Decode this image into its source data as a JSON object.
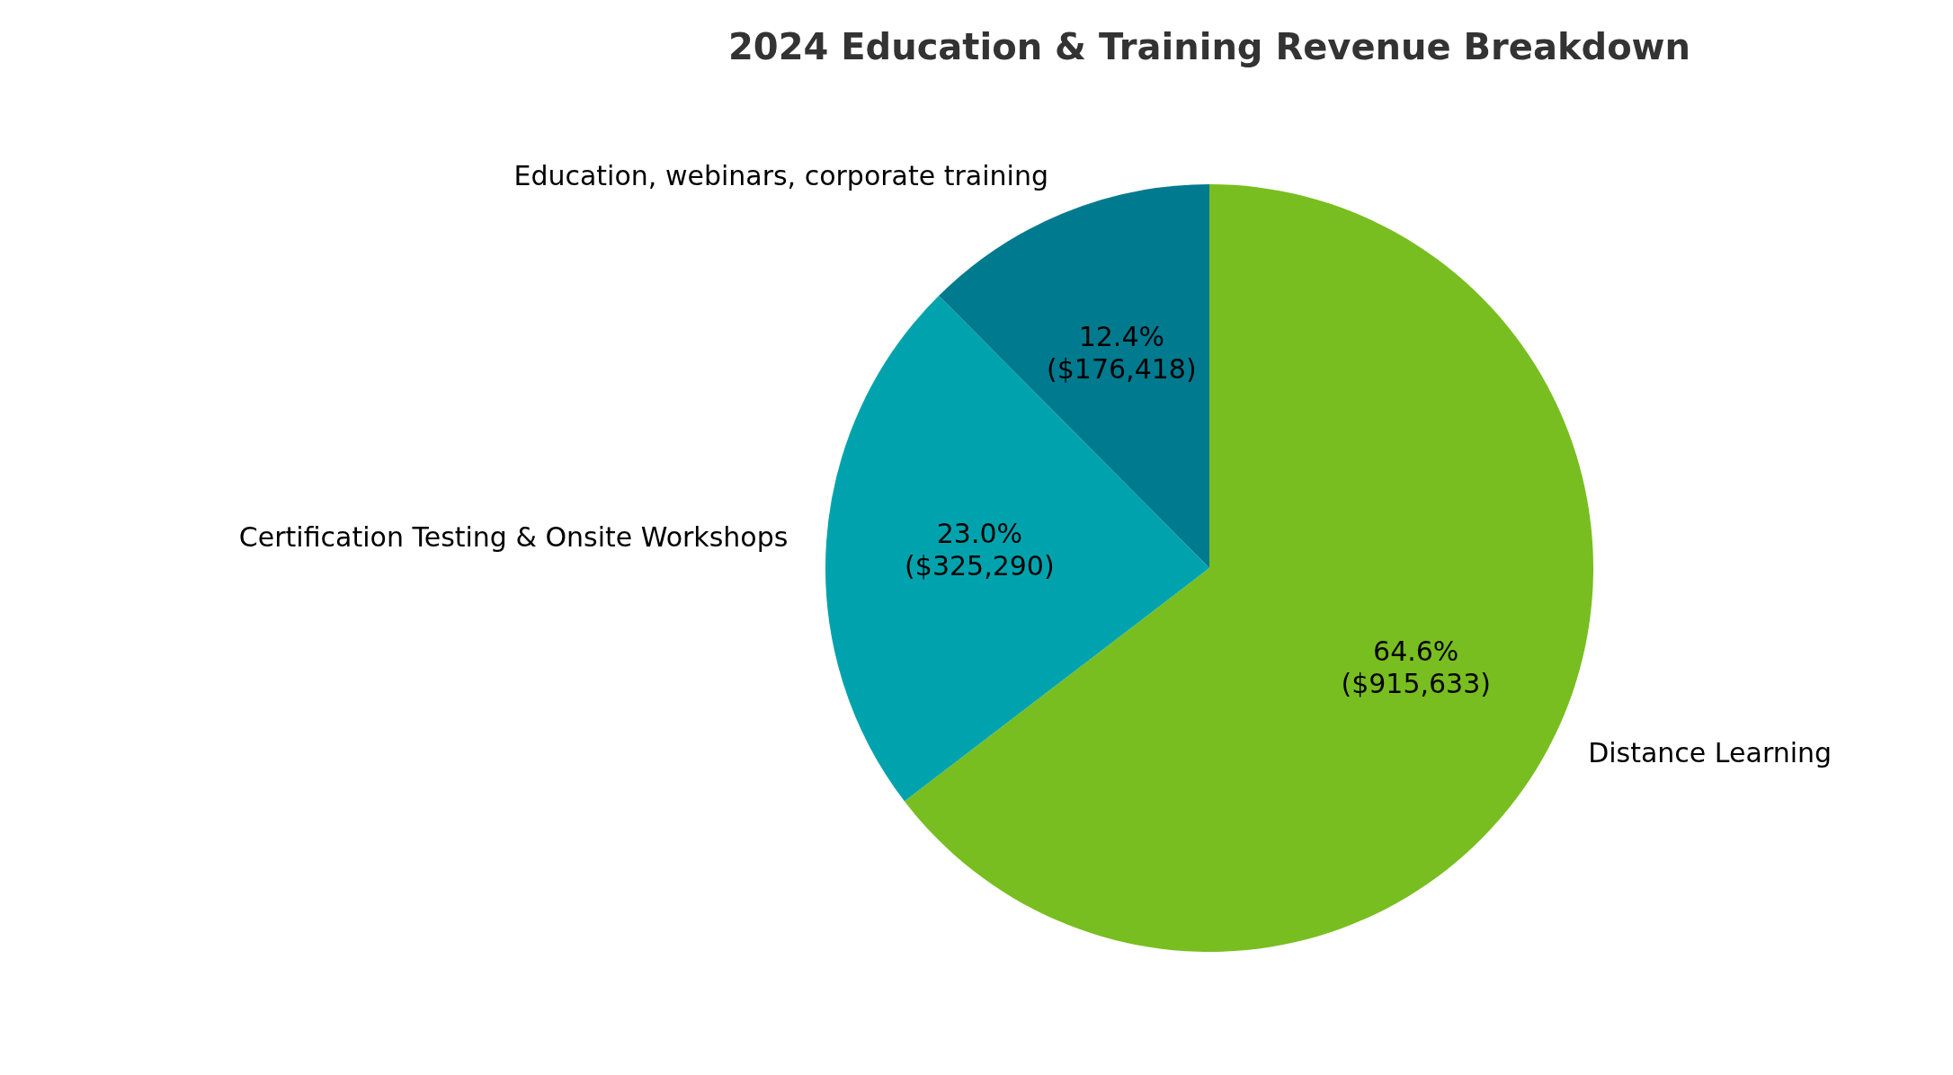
{
  "chart_data": {
    "type": "pie",
    "title": "2024 Education & Training Revenue Breakdown",
    "categories": [
      "Distance Learning",
      "Certification Testing & Onsite Workshops",
      "Education, webinars, corporate training"
    ],
    "values": [
      915633,
      325290,
      176418
    ],
    "colors": [
      "#78be20",
      "#00a3ad",
      "#007a8f"
    ],
    "value_labels": [
      "64.6%\n($915,633)",
      "23.0%\n($325,290)",
      "12.4%\n($176,418)"
    ],
    "legend": false
  }
}
